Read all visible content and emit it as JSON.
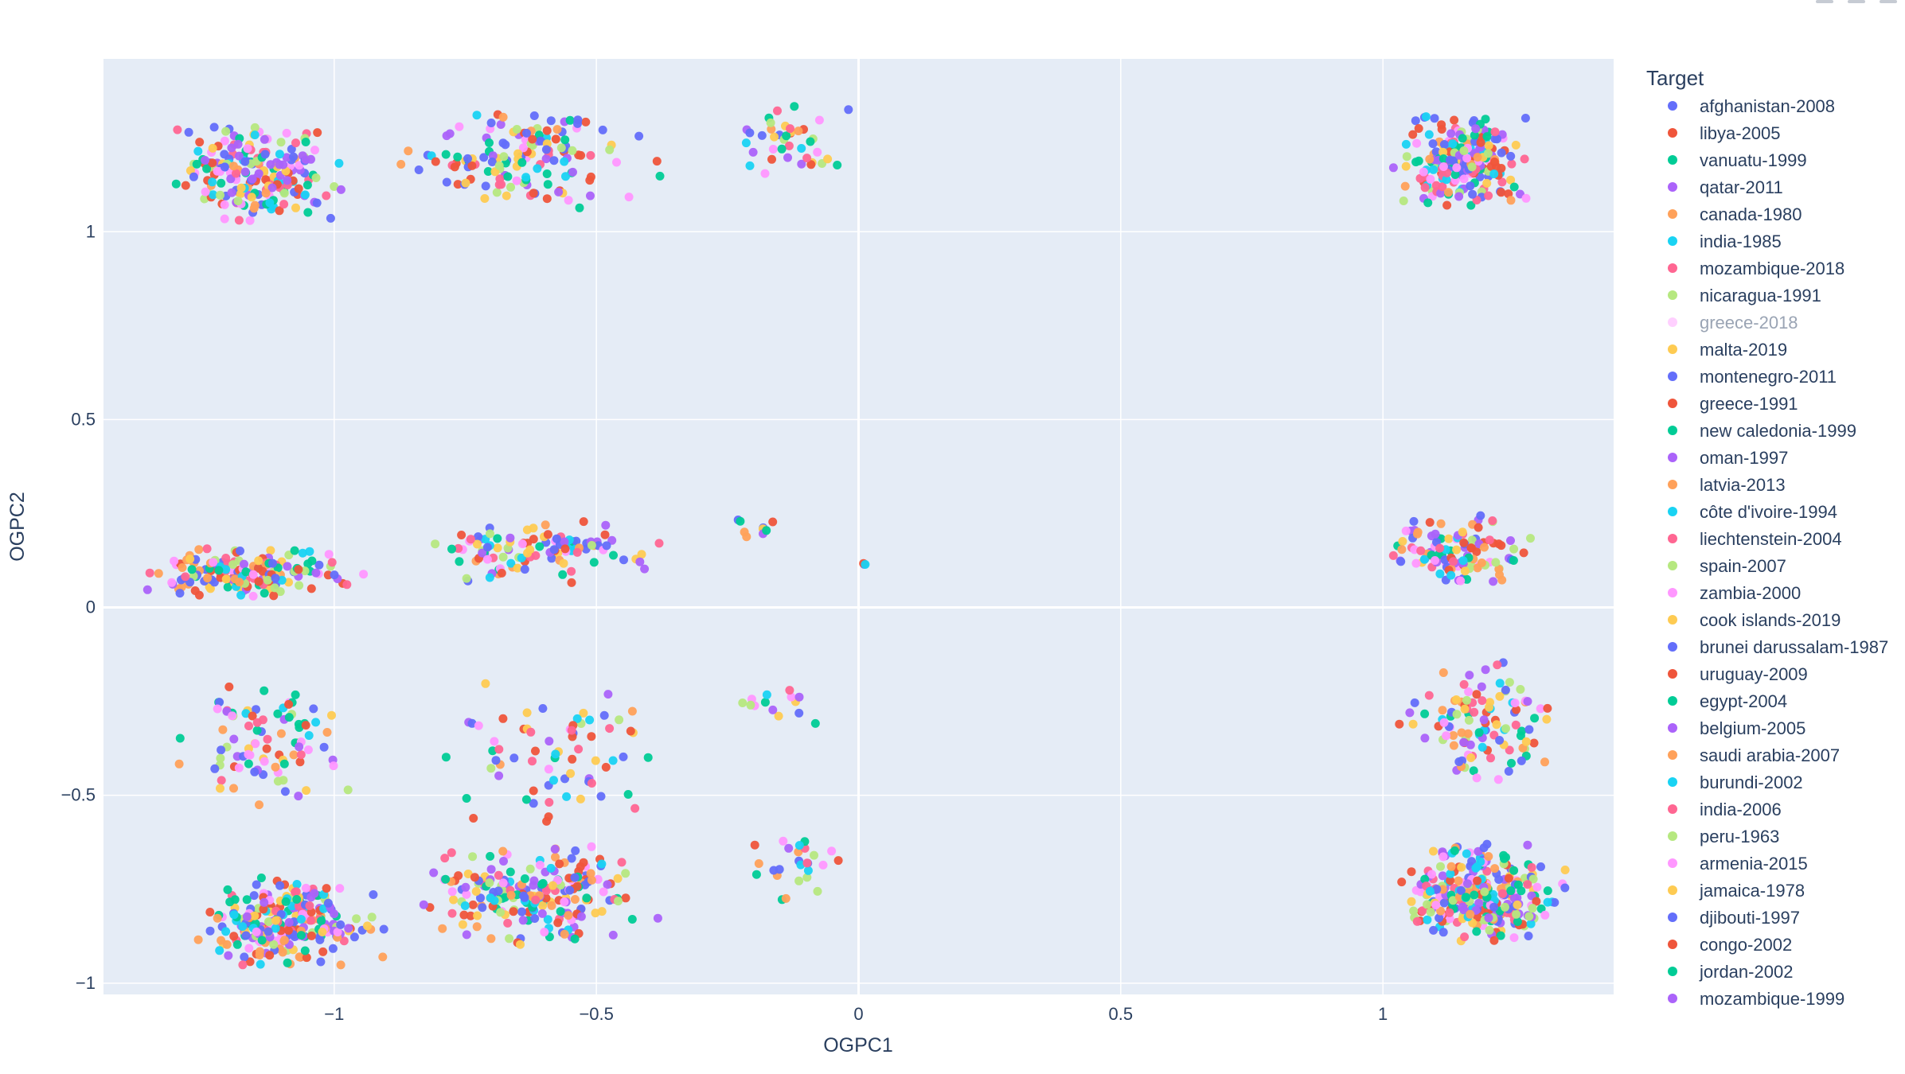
{
  "chart_data": {
    "type": "scatter",
    "xlabel": "OGPC1",
    "ylabel": "OGPC2",
    "xlim": [
      -1.44,
      1.44
    ],
    "ylim": [
      -1.03,
      1.46
    ],
    "x_ticks": [
      -1,
      -0.5,
      0,
      0.5,
      1
    ],
    "x_tick_labels": [
      "−1",
      "−0.5",
      "0",
      "0.5",
      "1"
    ],
    "y_ticks": [
      -1,
      -0.5,
      0,
      0.5,
      1
    ],
    "y_tick_labels": [
      "−1",
      "−0.5",
      "0",
      "0.5",
      "1"
    ],
    "grid": true,
    "plot_background": "#e5ecf6",
    "legend": {
      "title": "Target",
      "position": "right",
      "dimmed_entries": [
        "greece-2018"
      ]
    },
    "series": [
      {
        "name": "afghanistan-2008",
        "color": "#636efa"
      },
      {
        "name": "libya-2005",
        "color": "#EF553B"
      },
      {
        "name": "vanuatu-1999",
        "color": "#00cc96"
      },
      {
        "name": "qatar-2011",
        "color": "#ab63fa"
      },
      {
        "name": "canada-1980",
        "color": "#FFA15A"
      },
      {
        "name": "india-1985",
        "color": "#19d3f3"
      },
      {
        "name": "mozambique-2018",
        "color": "#FF6692"
      },
      {
        "name": "nicaragua-1991",
        "color": "#B6E880"
      },
      {
        "name": "greece-2018",
        "color": "#FF97FF"
      },
      {
        "name": "malta-2019",
        "color": "#FECB52"
      },
      {
        "name": "montenegro-2011",
        "color": "#636efa"
      },
      {
        "name": "greece-1991",
        "color": "#EF553B"
      },
      {
        "name": "new caledonia-1999",
        "color": "#00cc96"
      },
      {
        "name": "oman-1997",
        "color": "#ab63fa"
      },
      {
        "name": "latvia-2013",
        "color": "#FFA15A"
      },
      {
        "name": "côte d'ivoire-1994",
        "color": "#19d3f3"
      },
      {
        "name": "liechtenstein-2004",
        "color": "#FF6692"
      },
      {
        "name": "spain-2007",
        "color": "#B6E880"
      },
      {
        "name": "zambia-2000",
        "color": "#FF97FF"
      },
      {
        "name": "cook islands-2019",
        "color": "#FECB52"
      },
      {
        "name": "brunei darussalam-1987",
        "color": "#636efa"
      },
      {
        "name": "uruguay-2009",
        "color": "#EF553B"
      },
      {
        "name": "egypt-2004",
        "color": "#00cc96"
      },
      {
        "name": "belgium-2005",
        "color": "#ab63fa"
      },
      {
        "name": "saudi arabia-2007",
        "color": "#FFA15A"
      },
      {
        "name": "burundi-2002",
        "color": "#19d3f3"
      },
      {
        "name": "india-2006",
        "color": "#FF6692"
      },
      {
        "name": "peru-1963",
        "color": "#B6E880"
      },
      {
        "name": "armenia-2015",
        "color": "#FF97FF"
      },
      {
        "name": "jamaica-1978",
        "color": "#FECB52"
      },
      {
        "name": "djibouti-1997",
        "color": "#636efa"
      },
      {
        "name": "congo-2002",
        "color": "#EF553B"
      },
      {
        "name": "jordan-2002",
        "color": "#00cc96"
      },
      {
        "name": "mozambique-1999",
        "color": "#ab63fa"
      }
    ],
    "clusters": [
      {
        "x": [
          -1.36,
          -0.93
        ],
        "y": [
          1.02,
          1.29
        ],
        "n": 210
      },
      {
        "x": [
          -0.92,
          -0.35
        ],
        "y": [
          1.06,
          1.33
        ],
        "n": 150
      },
      {
        "x": [
          -0.28,
          0.02
        ],
        "y": [
          1.11,
          1.36
        ],
        "n": 40
      },
      {
        "x": [
          1.0,
          1.3
        ],
        "y": [
          1.06,
          1.33
        ],
        "n": 230
      },
      {
        "x": [
          -1.4,
          -0.92
        ],
        "y": [
          0.02,
          0.17
        ],
        "n": 170
      },
      {
        "x": [
          -0.92,
          -0.34
        ],
        "y": [
          0.06,
          0.23
        ],
        "n": 110
      },
      {
        "x": [
          -0.28,
          -0.1
        ],
        "y": [
          0.18,
          0.24
        ],
        "n": 9
      },
      {
        "x": [
          0.0,
          0.02
        ],
        "y": [
          0.11,
          0.12
        ],
        "n": 3
      },
      {
        "x": [
          0.96,
          1.32
        ],
        "y": [
          0.06,
          0.25
        ],
        "n": 120
      },
      {
        "x": [
          -1.34,
          -0.92
        ],
        "y": [
          -0.53,
          -0.19
        ],
        "n": 90
      },
      {
        "x": [
          -0.87,
          -0.3
        ],
        "y": [
          -0.6,
          -0.18
        ],
        "n": 70
      },
      {
        "x": [
          -0.28,
          -0.02
        ],
        "y": [
          -0.34,
          -0.16
        ],
        "n": 14
      },
      {
        "x": [
          1.02,
          1.35
        ],
        "y": [
          -0.47,
          -0.13
        ],
        "n": 110
      },
      {
        "x": [
          -1.3,
          -0.88
        ],
        "y": [
          -0.96,
          -0.71
        ],
        "n": 260
      },
      {
        "x": [
          -0.89,
          -0.35
        ],
        "y": [
          -0.9,
          -0.63
        ],
        "n": 220
      },
      {
        "x": [
          -0.24,
          0.0
        ],
        "y": [
          -0.81,
          -0.59
        ],
        "n": 26
      },
      {
        "x": [
          1.0,
          1.38
        ],
        "y": [
          -0.9,
          -0.62
        ],
        "n": 300
      }
    ]
  }
}
